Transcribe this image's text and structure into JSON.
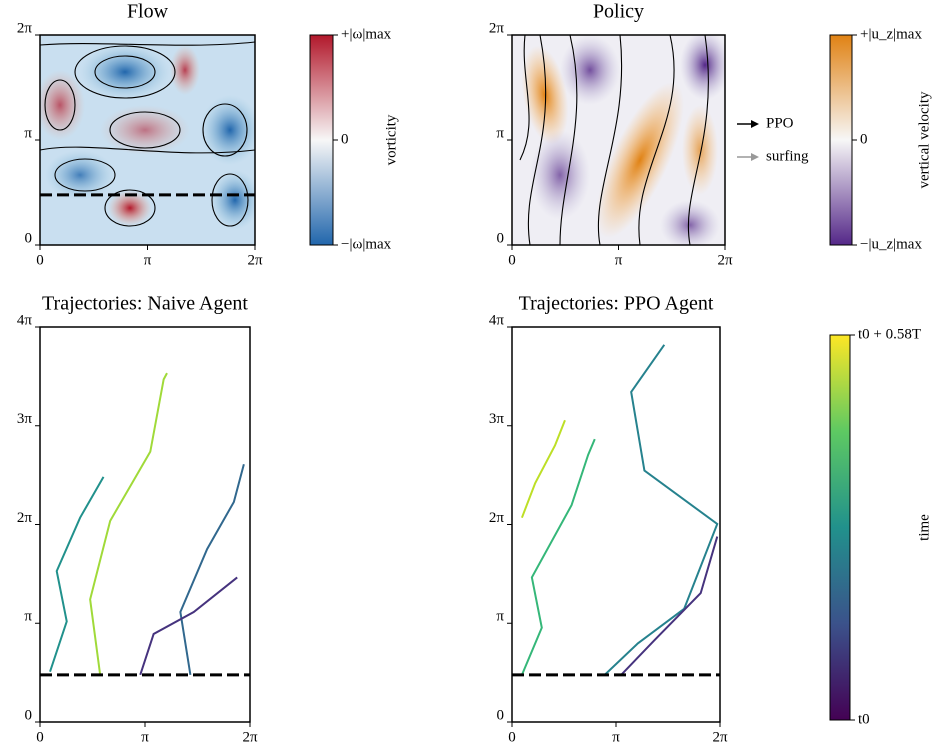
{
  "chart_data": [
    {
      "type": "heatmap",
      "title": "Flow",
      "xlim": [
        0,
        6.2832
      ],
      "ylim": [
        0,
        6.2832
      ],
      "xticks": [
        0,
        {
          "value": 3.1416,
          "label": "π"
        },
        {
          "value": 6.2832,
          "label": "2π"
        }
      ],
      "yticks": [
        0,
        {
          "value": 3.1416,
          "label": "π"
        },
        {
          "value": 6.2832,
          "label": "2π"
        }
      ],
      "start_line": 1.5,
      "colorbar": {
        "label": "vorticity",
        "clim": [
          -1,
          1
        ],
        "colors": [
          "#2166ac",
          "#f7f7f7",
          "#b2182b"
        ],
        "ticks": [
          {
            "value": -1,
            "label": "−|ω|max"
          },
          0,
          {
            "value": 1,
            "label": "+|ω|max"
          }
        ]
      }
    },
    {
      "type": "heatmap",
      "title": "Policy",
      "xlim": [
        0,
        6.2832
      ],
      "ylim": [
        0,
        6.2832
      ],
      "xticks": [
        0,
        {
          "value": 3.1416,
          "label": "π"
        },
        {
          "value": 6.2832,
          "label": "2π"
        }
      ],
      "yticks": [
        0,
        {
          "value": 3.1416,
          "label": "π"
        },
        {
          "value": 6.2832,
          "label": "2π"
        }
      ],
      "legend": [
        {
          "name": "PPO",
          "color": "#000000"
        },
        {
          "name": "surfing",
          "color": "#999999"
        }
      ],
      "colorbar": {
        "label": "vertical velocity",
        "clim": [
          -1,
          1
        ],
        "colors": [
          "#542788",
          "#f7f7f7",
          "#e08214"
        ],
        "ticks": [
          {
            "value": -1,
            "label": "−|u_z|max"
          },
          0,
          {
            "value": 1,
            "label": "+|u_z|max"
          }
        ]
      }
    },
    {
      "type": "line",
      "title": "Trajectories: Naive Agent",
      "xlim": [
        0,
        6.2832
      ],
      "ylim": [
        0,
        12.5664
      ],
      "xticks": [
        0,
        {
          "value": 3.1416,
          "label": "π"
        },
        {
          "value": 6.2832,
          "label": "2π"
        }
      ],
      "yticks": [
        0,
        {
          "value": 3.1416,
          "label": "π"
        },
        {
          "value": 6.2832,
          "label": "2π"
        },
        {
          "value": 9.4248,
          "label": "3π"
        },
        {
          "value": 12.5664,
          "label": "4π"
        }
      ],
      "start_line": 1.5,
      "series": [
        {
          "color": "#a0da39",
          "x": [
            1.8,
            1.5,
            2.1,
            3.3,
            3.7,
            3.8
          ],
          "values": [
            1.5,
            3.9,
            6.4,
            8.6,
            10.9,
            11.1
          ]
        },
        {
          "color": "#31688e",
          "x": [
            4.5,
            4.2,
            5.0,
            5.8,
            6.1
          ],
          "values": [
            1.5,
            3.5,
            5.5,
            7.0,
            8.2
          ]
        },
        {
          "color": "#21918c",
          "x": [
            0.3,
            0.8,
            0.5,
            1.2,
            1.9
          ],
          "values": [
            1.6,
            3.2,
            4.8,
            6.5,
            7.8
          ]
        },
        {
          "color": "#46337e",
          "x": [
            3.0,
            3.4,
            4.6,
            5.9
          ],
          "values": [
            1.5,
            2.8,
            3.5,
            4.6
          ]
        }
      ]
    },
    {
      "type": "line",
      "title": "Trajectories: PPO Agent",
      "xlim": [
        0,
        6.2832
      ],
      "ylim": [
        0,
        12.5664
      ],
      "xticks": [
        0,
        {
          "value": 3.1416,
          "label": "π"
        },
        {
          "value": 6.2832,
          "label": "2π"
        }
      ],
      "yticks": [
        0,
        {
          "value": 3.1416,
          "label": "π"
        },
        {
          "value": 6.2832,
          "label": "2π"
        },
        {
          "value": 9.4248,
          "label": "3π"
        },
        {
          "value": 12.5664,
          "label": "4π"
        }
      ],
      "start_line": 1.5,
      "series": [
        {
          "color": "#35b779",
          "x": [
            0.3,
            0.9,
            0.6,
            1.8,
            2.3,
            2.5
          ],
          "values": [
            1.5,
            3.0,
            4.6,
            6.9,
            8.5,
            9.0
          ]
        },
        {
          "color": "#26828e",
          "x": [
            2.8,
            3.8,
            5.2,
            6.2,
            4.0,
            3.6,
            4.6
          ],
          "values": [
            1.5,
            2.5,
            3.6,
            6.3,
            8.0,
            10.5,
            12.0
          ]
        },
        {
          "color": "#46337e",
          "x": [
            3.3,
            4.3,
            5.7,
            6.2
          ],
          "values": [
            1.5,
            2.6,
            4.1,
            5.9
          ]
        },
        {
          "color": "#bddf26",
          "x": [
            0.3,
            0.7,
            1.3,
            1.6
          ],
          "values": [
            6.5,
            7.6,
            8.8,
            9.6
          ]
        }
      ]
    },
    {
      "type": "colorbar",
      "label": "time",
      "clim": [
        0,
        0.58
      ],
      "colors": [
        "#440154",
        "#3b528b",
        "#21918c",
        "#5ec962",
        "#fde725"
      ],
      "ticks": [
        {
          "value": 0,
          "label": "t0"
        },
        {
          "value": 0.58,
          "label": "t0 + 0.58T"
        }
      ]
    }
  ]
}
